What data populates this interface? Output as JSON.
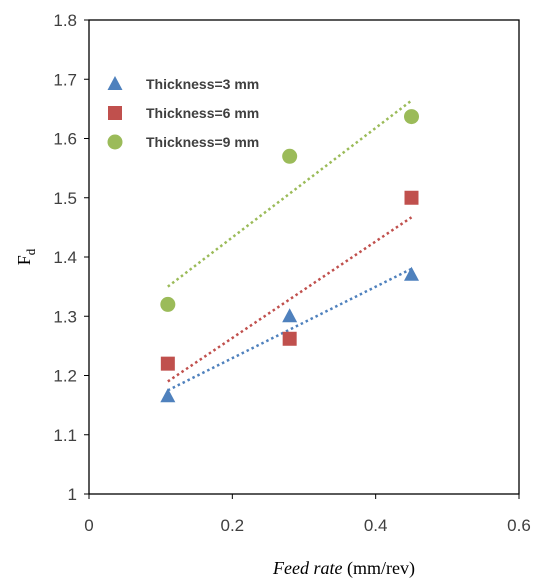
{
  "chart_data": {
    "type": "scatter",
    "xlabel_italic": "Feed rate",
    "xlabel_unit": " (mm/rev)",
    "ylabel_main": "F",
    "ylabel_sub": "d",
    "xlim": [
      0,
      0.6
    ],
    "ylim": [
      1,
      1.8
    ],
    "xticks": [
      "0",
      "0.2",
      "0.4",
      "0.6"
    ],
    "yticks": [
      "1",
      "1.1",
      "1.2",
      "1.3",
      "1.4",
      "1.5",
      "1.6",
      "1.7",
      "1.8"
    ],
    "grid": false,
    "legend_position": "top-left",
    "trendline_style": "dotted linear",
    "series": [
      {
        "name": "Thickness=3 mm",
        "marker": "triangle",
        "color": "#4f81bd",
        "x": [
          0.11,
          0.28,
          0.45
        ],
        "y": [
          1.165,
          1.3,
          1.37
        ],
        "trend": [
          [
            0.11,
            1.175
          ],
          [
            0.45,
            1.38
          ]
        ]
      },
      {
        "name": "Thickness=6 mm",
        "marker": "square",
        "color": "#c0504d",
        "x": [
          0.11,
          0.28,
          0.45
        ],
        "y": [
          1.22,
          1.262,
          1.5
        ],
        "trend": [
          [
            0.11,
            1.19
          ],
          [
            0.45,
            1.467
          ]
        ]
      },
      {
        "name": "Thickness=9 mm",
        "marker": "circle",
        "color": "#9bbb59",
        "x": [
          0.11,
          0.28,
          0.45
        ],
        "y": [
          1.32,
          1.57,
          1.637
        ],
        "trend": [
          [
            0.11,
            1.35
          ],
          [
            0.45,
            1.664
          ]
        ]
      }
    ]
  }
}
